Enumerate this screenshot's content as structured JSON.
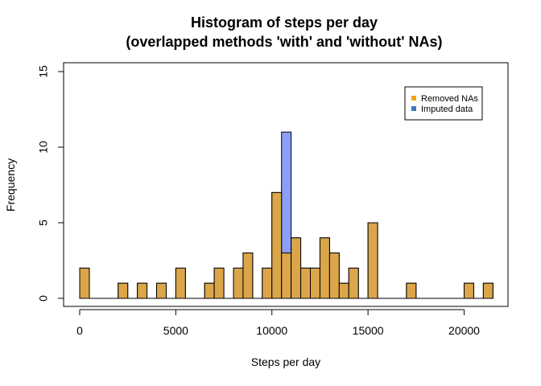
{
  "chart_data": {
    "type": "bar",
    "title": "Histogram of steps per day",
    "subtitle": "(overlapped methods 'with' and 'without' NAs)",
    "xlabel": "Steps per day",
    "ylabel": "Frequency",
    "xlim": [
      -500,
      22000
    ],
    "ylim": [
      0,
      15
    ],
    "xticks": [
      0,
      5000,
      10000,
      15000,
      20000
    ],
    "yticks": [
      0,
      5,
      10,
      15
    ],
    "bin_width": 500,
    "bin_starts": [
      0,
      500,
      1000,
      1500,
      2000,
      2500,
      3000,
      3500,
      4000,
      4500,
      5000,
      5500,
      6000,
      6500,
      7000,
      7500,
      8000,
      8500,
      9000,
      9500,
      10000,
      10500,
      11000,
      11500,
      12000,
      12500,
      13000,
      13500,
      14000,
      14500,
      15000,
      15500,
      16000,
      16500,
      17000,
      17500,
      18000,
      18500,
      19000,
      19500,
      20000,
      20500,
      21000
    ],
    "series": [
      {
        "name": "Imputed data",
        "color": "#8a9ff7",
        "values": [
          2,
          0,
          0,
          0,
          1,
          0,
          1,
          0,
          1,
          0,
          2,
          0,
          0,
          1,
          2,
          0,
          2,
          3,
          0,
          2,
          7,
          11,
          4,
          2,
          2,
          4,
          3,
          1,
          2,
          0,
          5,
          0,
          0,
          0,
          1,
          0,
          0,
          0,
          0,
          0,
          1,
          0,
          1
        ]
      },
      {
        "name": "Removed NAs",
        "color": "#dba54a",
        "values": [
          2,
          0,
          0,
          0,
          1,
          0,
          1,
          0,
          1,
          0,
          2,
          0,
          0,
          1,
          2,
          0,
          2,
          3,
          0,
          2,
          7,
          3,
          4,
          2,
          2,
          4,
          3,
          1,
          2,
          0,
          5,
          0,
          0,
          0,
          1,
          0,
          0,
          0,
          0,
          0,
          1,
          0,
          1
        ]
      }
    ],
    "legend": {
      "placement": "top-right",
      "entries": [
        {
          "label": "Removed NAs",
          "color": "#f5a31a"
        },
        {
          "label": "Imputed data",
          "color": "#3d7ab8"
        }
      ]
    }
  }
}
